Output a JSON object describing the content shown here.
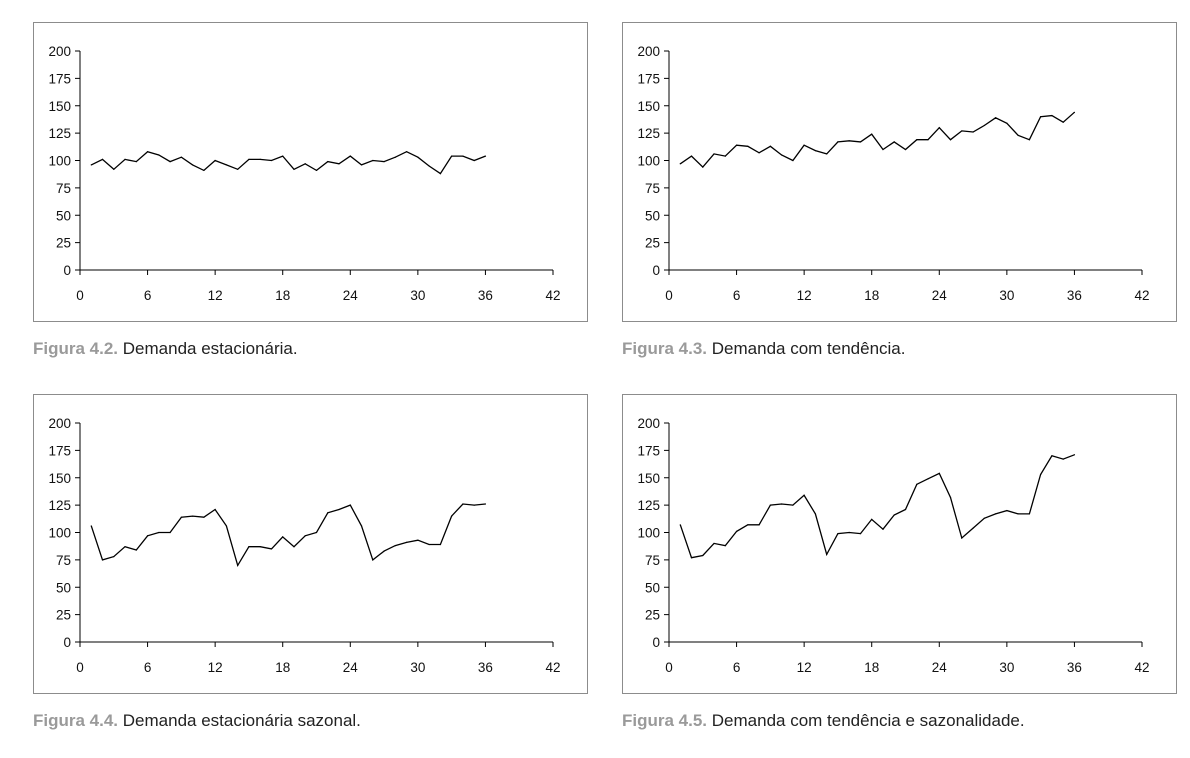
{
  "figures": [
    {
      "label": "Figura 4.2.",
      "text": "Demanda estacionária."
    },
    {
      "label": "Figura 4.3.",
      "text": "Demanda com tendência."
    },
    {
      "label": "Figura 4.4.",
      "text": "Demanda estacionária sazonal."
    },
    {
      "label": "Figura 4.5.",
      "text": "Demanda com tendência e sazonalidade."
    }
  ],
  "chart_data": [
    {
      "type": "line",
      "title": "",
      "xlabel": "",
      "ylabel": "",
      "xlim": [
        0,
        42
      ],
      "ylim": [
        0,
        200
      ],
      "xticks": [
        0,
        6,
        12,
        18,
        24,
        30,
        36,
        42
      ],
      "yticks": [
        0,
        25,
        50,
        75,
        100,
        125,
        150,
        175,
        200
      ],
      "grid": false,
      "legend": "none",
      "x": [
        1,
        2,
        3,
        4,
        5,
        6,
        7,
        8,
        9,
        10,
        11,
        12,
        13,
        14,
        15,
        16,
        17,
        18,
        19,
        20,
        21,
        22,
        23,
        24,
        25,
        26,
        27,
        28,
        29,
        30,
        31,
        32,
        33,
        34,
        35,
        36
      ],
      "series": [
        {
          "values": [
            96,
            101,
            92,
            101,
            99,
            108,
            105,
            99,
            103,
            96,
            91,
            100,
            96,
            92,
            101,
            101,
            100,
            104,
            92,
            97,
            91,
            99,
            97,
            104,
            96,
            100,
            99,
            103,
            108,
            103,
            95,
            88,
            104,
            104,
            100,
            104
          ]
        }
      ]
    },
    {
      "type": "line",
      "title": "",
      "xlabel": "",
      "ylabel": "",
      "xlim": [
        0,
        42
      ],
      "ylim": [
        0,
        200
      ],
      "xticks": [
        0,
        6,
        12,
        18,
        24,
        30,
        36,
        42
      ],
      "yticks": [
        0,
        25,
        50,
        75,
        100,
        125,
        150,
        175,
        200
      ],
      "grid": false,
      "legend": "none",
      "x": [
        1,
        2,
        3,
        4,
        5,
        6,
        7,
        8,
        9,
        10,
        11,
        12,
        13,
        14,
        15,
        16,
        17,
        18,
        19,
        20,
        21,
        22,
        23,
        24,
        25,
        26,
        27,
        28,
        29,
        30,
        31,
        32,
        33,
        34,
        35,
        36
      ],
      "series": [
        {
          "values": [
            97,
            104,
            94,
            106,
            104,
            114,
            113,
            107,
            113,
            105,
            100,
            114,
            109,
            106,
            117,
            118,
            117,
            124,
            110,
            117,
            110,
            119,
            119,
            130,
            119,
            127,
            126,
            132,
            139,
            134,
            123,
            119,
            140,
            141,
            135,
            144
          ]
        }
      ]
    },
    {
      "type": "line",
      "title": "",
      "xlabel": "",
      "ylabel": "",
      "xlim": [
        0,
        42
      ],
      "ylim": [
        0,
        200
      ],
      "xticks": [
        0,
        6,
        12,
        18,
        24,
        30,
        36,
        42
      ],
      "yticks": [
        0,
        25,
        50,
        75,
        100,
        125,
        150,
        175,
        200
      ],
      "grid": false,
      "legend": "none",
      "x": [
        1,
        2,
        3,
        4,
        5,
        6,
        7,
        8,
        9,
        10,
        11,
        12,
        13,
        14,
        15,
        16,
        17,
        18,
        19,
        20,
        21,
        22,
        23,
        24,
        25,
        26,
        27,
        28,
        29,
        30,
        31,
        32,
        33,
        34,
        35,
        36
      ],
      "series": [
        {
          "values": [
            106,
            75,
            78,
            87,
            84,
            97,
            100,
            100,
            114,
            115,
            114,
            121,
            106,
            70,
            87,
            87,
            85,
            96,
            87,
            97,
            100,
            118,
            121,
            125,
            106,
            75,
            83,
            88,
            91,
            93,
            89,
            89,
            115,
            126,
            125,
            126
          ]
        }
      ]
    },
    {
      "type": "line",
      "title": "",
      "xlabel": "",
      "ylabel": "",
      "xlim": [
        0,
        42
      ],
      "ylim": [
        0,
        200
      ],
      "xticks": [
        0,
        6,
        12,
        18,
        24,
        30,
        36,
        42
      ],
      "yticks": [
        0,
        25,
        50,
        75,
        100,
        125,
        150,
        175,
        200
      ],
      "grid": false,
      "legend": "none",
      "x": [
        1,
        2,
        3,
        4,
        5,
        6,
        7,
        8,
        9,
        10,
        11,
        12,
        13,
        14,
        15,
        16,
        17,
        18,
        19,
        20,
        21,
        22,
        23,
        24,
        25,
        26,
        27,
        28,
        29,
        30,
        31,
        32,
        33,
        34,
        35,
        36
      ],
      "series": [
        {
          "values": [
            107,
            77,
            79,
            90,
            88,
            101,
            107,
            107,
            125,
            126,
            125,
            134,
            117,
            80,
            99,
            100,
            99,
            112,
            103,
            116,
            121,
            144,
            149,
            154,
            132,
            95,
            104,
            113,
            117,
            120,
            117,
            117,
            153,
            170,
            167,
            171
          ]
        }
      ]
    }
  ]
}
